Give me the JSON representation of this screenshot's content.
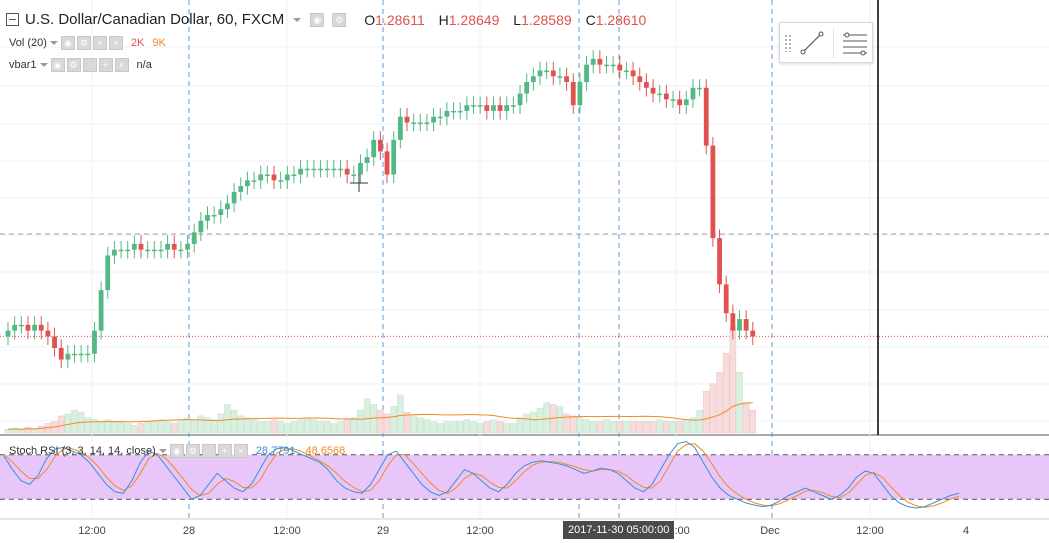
{
  "header": {
    "symbol_title": "U.S. Dollar/Canadian Dollar, 60, FXCM",
    "ohlc": {
      "o_label": "O",
      "o": "1.28611",
      "h_label": "H",
      "h": "1.28649",
      "l_label": "L",
      "l": "1.28589",
      "c_label": "C",
      "c": "1.28610"
    }
  },
  "indicators": {
    "volume": {
      "label": "Vol (20)",
      "value_a": "2K",
      "value_b": "9K"
    },
    "vbar": {
      "label": "vbar1",
      "value": "n/a"
    },
    "stoch_rsi": {
      "label": "Stoch RSI (3, 3, 14, 14, close)",
      "k": "28.7791",
      "d": "48.6568"
    }
  },
  "crosshair": {
    "time_label": "2017-11-30 05:00:00"
  },
  "colors": {
    "up": "#54b882",
    "down": "#e0524f",
    "up_vol": "#d9efdf",
    "down_vol": "#f6dcdc",
    "vol_ma": "#f08a24",
    "k_line": "#3b8fd6",
    "d_line": "#f08a24",
    "rsi_band": "#e8c6fa"
  },
  "chart_data": {
    "type": "candlestick",
    "x_tick_labels": [
      "12:00",
      "28",
      "12:00",
      "29",
      "12:00",
      "12:00",
      "Dec",
      "12:00",
      "4"
    ],
    "candles_close": [
      1.2812,
      1.2813,
      1.2813,
      1.2812,
      1.2813,
      1.2812,
      1.2811,
      1.2809,
      1.2807,
      1.2808,
      1.2808,
      1.2808,
      1.2808,
      1.2812,
      1.2819,
      1.2825,
      1.2826,
      1.2826,
      1.2826,
      1.2827,
      1.2826,
      1.2826,
      1.2826,
      1.2826,
      1.2827,
      1.2826,
      1.2826,
      1.2827,
      1.2829,
      1.2831,
      1.2832,
      1.2832,
      1.2833,
      1.2834,
      1.2836,
      1.2837,
      1.2838,
      1.2838,
      1.2839,
      1.2839,
      1.2838,
      1.2838,
      1.2839,
      1.2839,
      1.284,
      1.284,
      1.284,
      1.284,
      1.284,
      1.284,
      1.284,
      1.2839,
      1.2839,
      1.2841,
      1.2842,
      1.2845,
      1.2843,
      1.2839,
      1.2845,
      1.2849,
      1.2848,
      1.2848,
      1.2848,
      1.2848,
      1.2849,
      1.2849,
      1.285,
      1.285,
      1.285,
      1.2851,
      1.2851,
      1.2851,
      1.285,
      1.2851,
      1.285,
      1.2851,
      1.2851,
      1.2853,
      1.2855,
      1.2856,
      1.2857,
      1.2857,
      1.2856,
      1.2856,
      1.2855,
      1.2851,
      1.2855,
      1.2858,
      1.2859,
      1.2858,
      1.2858,
      1.2858,
      1.2857,
      1.2857,
      1.2856,
      1.2855,
      1.2854,
      1.2853,
      1.2853,
      1.2852,
      1.2852,
      1.2851,
      1.2852,
      1.2854,
      1.2854,
      1.2844,
      1.2828,
      1.282,
      1.2815,
      1.2812,
      1.2814,
      1.2812,
      1.2811
    ],
    "volume_relative": [
      0.1,
      0.12,
      0.08,
      0.15,
      0.1,
      0.18,
      0.25,
      0.3,
      0.45,
      0.5,
      0.6,
      0.55,
      0.4,
      0.35,
      0.3,
      0.35,
      0.3,
      0.3,
      0.25,
      0.2,
      0.25,
      0.3,
      0.3,
      0.35,
      0.3,
      0.25,
      0.35,
      0.4,
      0.35,
      0.45,
      0.4,
      0.35,
      0.5,
      0.75,
      0.6,
      0.45,
      0.4,
      0.35,
      0.3,
      0.3,
      0.35,
      0.3,
      0.25,
      0.3,
      0.35,
      0.4,
      0.35,
      0.3,
      0.3,
      0.25,
      0.3,
      0.35,
      0.4,
      0.6,
      0.9,
      0.75,
      0.6,
      0.5,
      0.7,
      1.0,
      0.55,
      0.45,
      0.4,
      0.35,
      0.3,
      0.25,
      0.3,
      0.3,
      0.3,
      0.35,
      0.3,
      0.25,
      0.3,
      0.35,
      0.3,
      0.25,
      0.25,
      0.4,
      0.5,
      0.55,
      0.65,
      0.8,
      0.75,
      0.7,
      0.5,
      0.45,
      0.4,
      0.35,
      0.3,
      0.3,
      0.35,
      0.3,
      0.3,
      0.3,
      0.3,
      0.3,
      0.3,
      0.3,
      0.35,
      0.3,
      0.3,
      0.3,
      0.35,
      0.4,
      0.6,
      1.1,
      1.3,
      1.6,
      2.1,
      2.8,
      1.6,
      0.8,
      0.6
    ],
    "stoch_k": [
      78,
      60,
      45,
      40,
      52,
      75,
      88,
      90,
      85,
      80,
      70,
      55,
      40,
      30,
      28,
      45,
      70,
      85,
      80,
      65,
      50,
      35,
      20,
      25,
      40,
      55,
      45,
      35,
      30,
      40,
      60,
      80,
      88,
      90,
      85,
      80,
      75,
      70,
      60,
      45,
      35,
      30,
      28,
      40,
      60,
      80,
      85,
      70,
      55,
      40,
      30,
      25,
      30,
      45,
      60,
      55,
      45,
      35,
      30,
      40,
      55,
      65,
      70,
      72,
      70,
      68,
      65,
      60,
      55,
      58,
      62,
      60,
      55,
      45,
      35,
      30,
      40,
      60,
      80,
      95,
      98,
      90,
      70,
      50,
      35,
      25,
      20,
      15,
      12,
      10,
      12,
      18,
      25,
      30,
      35,
      30,
      25,
      20,
      25,
      35,
      50,
      58,
      55,
      40,
      25,
      15,
      10,
      8,
      10,
      15,
      20,
      25,
      28
    ],
    "stoch_d": [
      80,
      70,
      58,
      48,
      48,
      60,
      78,
      88,
      88,
      84,
      76,
      65,
      50,
      38,
      32,
      38,
      55,
      75,
      82,
      75,
      62,
      48,
      33,
      25,
      28,
      40,
      48,
      44,
      36,
      35,
      45,
      65,
      82,
      88,
      88,
      84,
      78,
      72,
      65,
      55,
      44,
      36,
      30,
      32,
      45,
      65,
      80,
      80,
      68,
      55,
      42,
      32,
      28,
      35,
      48,
      55,
      52,
      43,
      36,
      35,
      45,
      57,
      66,
      70,
      71,
      70,
      67,
      64,
      60,
      58,
      60,
      60,
      58,
      52,
      43,
      36,
      35,
      45,
      65,
      85,
      94,
      95,
      85,
      68,
      50,
      36,
      27,
      20,
      15,
      12,
      11,
      14,
      19,
      25,
      31,
      32,
      29,
      24,
      22,
      28,
      40,
      52,
      56,
      50,
      37,
      25,
      16,
      11,
      9,
      11,
      15,
      20,
      24
    ],
    "stoch_range": [
      0,
      100
    ],
    "stoch_bands": [
      20,
      80
    ]
  }
}
